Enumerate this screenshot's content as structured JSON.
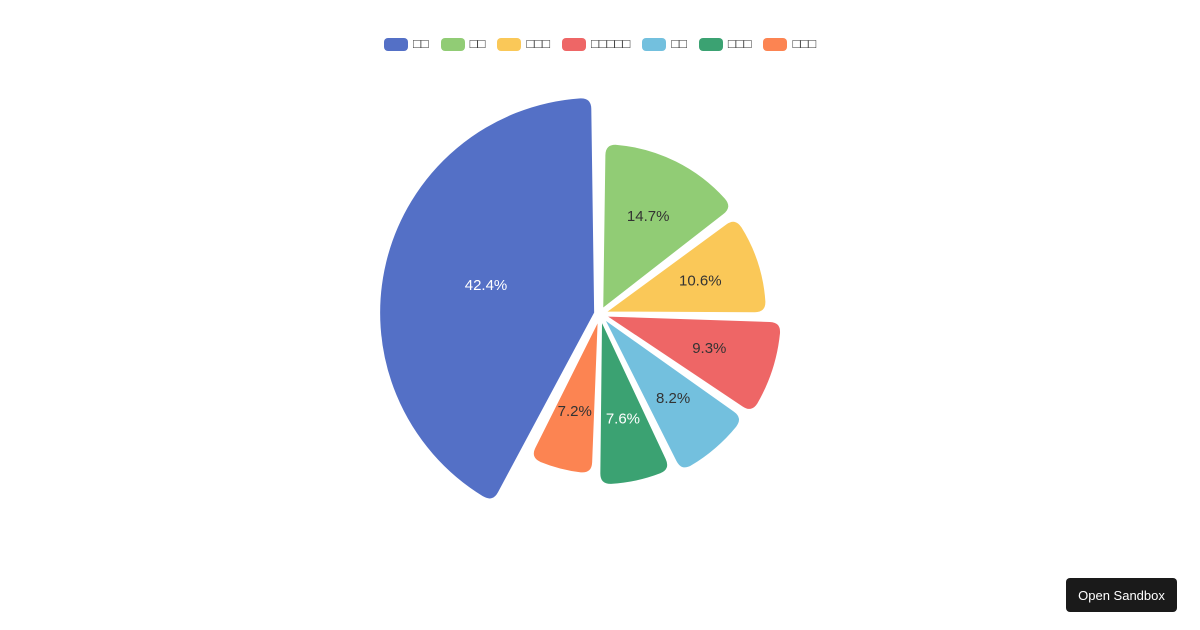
{
  "chart_data": {
    "type": "pie",
    "legend_position": "top-center",
    "series": [
      {
        "name": "□□",
        "value": 42.4,
        "label": "42.4%",
        "color": "#5470c6",
        "label_color": "#ffffff"
      },
      {
        "name": "□□",
        "value": 14.7,
        "label": "14.7%",
        "color": "#91cc75",
        "label_color": "#333333"
      },
      {
        "name": "□□□",
        "value": 10.6,
        "label": "10.6%",
        "color": "#fac858",
        "label_color": "#333333"
      },
      {
        "name": "□□□□□",
        "value": 9.3,
        "label": "9.3%",
        "color": "#ee6666",
        "label_color": "#333333"
      },
      {
        "name": "□□",
        "value": 8.2,
        "label": "8.2%",
        "color": "#73c0de",
        "label_color": "#333333"
      },
      {
        "name": "□□□",
        "value": 7.6,
        "label": "7.6%",
        "color": "#3ba272",
        "label_color": "#ffffff"
      },
      {
        "name": "□□□",
        "value": 7.2,
        "label": "7.2%",
        "color": "#fc8452",
        "label_color": "#333333"
      }
    ]
  },
  "sandbox_button": {
    "label": "Open Sandbox"
  }
}
